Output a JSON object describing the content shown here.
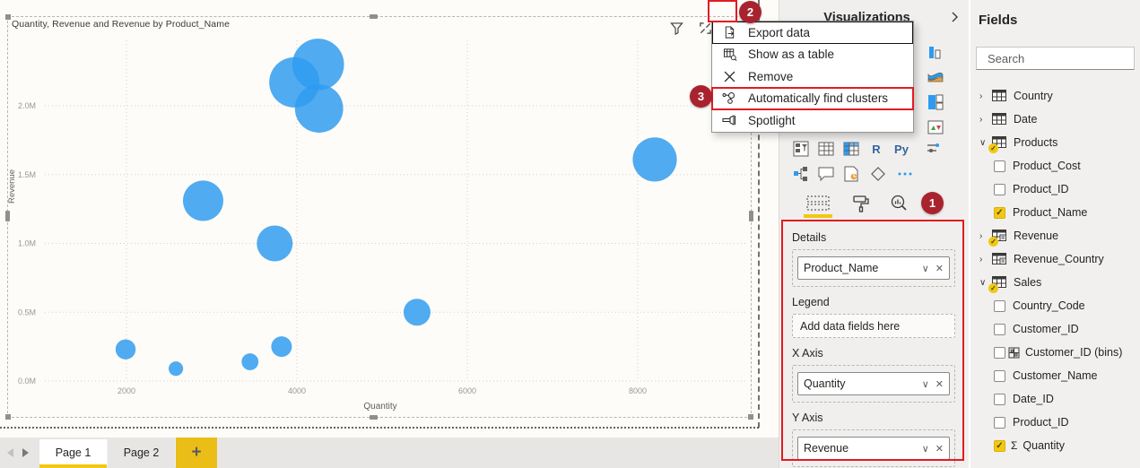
{
  "app": {
    "accent_yellow": "#F2C811",
    "bubble_blue": "#2E9BF0",
    "annotation_box_red": "#E11B22",
    "annotation_circle_red": "#A8232E"
  },
  "visual": {
    "title": "Quantity, Revenue and Revenue by Product_Name",
    "toolbar_icons": [
      "filter",
      "focus-mode",
      "more-options"
    ],
    "chart_data": {
      "type": "scatter",
      "title": "Quantity, Revenue and Revenue by Product_Name",
      "xlabel": "Quantity",
      "ylabel": "Revenue",
      "x_ticks": [
        2000,
        4000,
        6000,
        8000
      ],
      "y_tick_labels": [
        "0.0M",
        "0.5M",
        "1.0M",
        "1.5M",
        "2.0M"
      ],
      "xlim": [
        1050,
        9300
      ],
      "ylim": [
        0,
        2500000
      ],
      "grid": true,
      "legend": "none",
      "size_encoding": "Revenue",
      "series": [
        {
          "name": "Product_Name",
          "points": [
            {
              "quantity": 4250,
              "revenue": 2300000
            },
            {
              "quantity": 3970,
              "revenue": 2170000
            },
            {
              "quantity": 4260,
              "revenue": 1980000
            },
            {
              "quantity": 2900,
              "revenue": 1310000
            },
            {
              "quantity": 3740,
              "revenue": 1000000
            },
            {
              "quantity": 8200,
              "revenue": 1610000
            },
            {
              "quantity": 5410,
              "revenue": 500000
            },
            {
              "quantity": 1990,
              "revenue": 230000
            },
            {
              "quantity": 2580,
              "revenue": 90000
            },
            {
              "quantity": 3450,
              "revenue": 140000
            },
            {
              "quantity": 3820,
              "revenue": 250000
            }
          ]
        }
      ]
    }
  },
  "context_menu": {
    "items": [
      {
        "label": "Export data",
        "icon": "export-data",
        "focused": true
      },
      {
        "label": "Show as a table",
        "icon": "show-as-table"
      },
      {
        "label": "Remove",
        "icon": "remove"
      },
      {
        "label": "Automatically find clusters",
        "icon": "find-clusters",
        "annotated": true
      },
      {
        "label": "Spotlight",
        "icon": "spotlight"
      }
    ]
  },
  "annotations": {
    "step1": "1",
    "step2": "2",
    "step3": "3"
  },
  "visualizations_pane": {
    "title": "Visualizations",
    "gallery_text": {
      "r": "R",
      "py": "Py"
    },
    "gallery_right_column": [
      "funnel-chart",
      "ribbon-chart",
      "treemap",
      "kpi"
    ],
    "gallery_row1": [
      "slicer",
      "table",
      "matrix",
      "r-script",
      "python",
      "fields-parameter"
    ],
    "gallery_row2": [
      "decomposition-tree",
      "qa",
      "paginated-report",
      "power-apps",
      "more-visuals"
    ],
    "tabs": [
      {
        "name": "fields",
        "active": true
      },
      {
        "name": "format",
        "active": false
      },
      {
        "name": "analytics",
        "active": false
      }
    ],
    "wells": [
      {
        "label": "Details",
        "value": "Product_Name",
        "empty": false
      },
      {
        "label": "Legend",
        "placeholder": "Add data fields here",
        "empty": true
      },
      {
        "label": "X Axis",
        "value": "Quantity",
        "empty": false
      },
      {
        "label": "Y Axis",
        "value": "Revenue",
        "empty": false
      }
    ]
  },
  "fields_pane": {
    "title": "Fields",
    "search_placeholder": "Search",
    "tree": [
      {
        "kind": "table",
        "name": "Country",
        "expanded": false,
        "icon": "table",
        "badge": false
      },
      {
        "kind": "table",
        "name": "Date",
        "expanded": false,
        "icon": "table",
        "badge": false
      },
      {
        "kind": "table",
        "name": "Products",
        "expanded": true,
        "icon": "table",
        "badge": true
      },
      {
        "kind": "field",
        "name": "Product_Cost",
        "checked": false
      },
      {
        "kind": "field",
        "name": "Product_ID",
        "checked": false
      },
      {
        "kind": "field",
        "name": "Product_Name",
        "checked": true
      },
      {
        "kind": "table",
        "name": "Revenue",
        "expanded": false,
        "icon": "calc-table",
        "badge": true
      },
      {
        "kind": "table",
        "name": "Revenue_Country",
        "expanded": false,
        "icon": "calc-table",
        "badge": false
      },
      {
        "kind": "table",
        "name": "Sales",
        "expanded": true,
        "icon": "table",
        "badge": true
      },
      {
        "kind": "field",
        "name": "Country_Code",
        "checked": false
      },
      {
        "kind": "field",
        "name": "Customer_ID",
        "checked": false
      },
      {
        "kind": "field",
        "name": "Customer_ID (bins)",
        "checked": false,
        "icon": "bins"
      },
      {
        "kind": "field",
        "name": "Customer_Name",
        "checked": false
      },
      {
        "kind": "field",
        "name": "Date_ID",
        "checked": false
      },
      {
        "kind": "field",
        "name": "Product_ID",
        "checked": false
      },
      {
        "kind": "field",
        "name": "Quantity",
        "checked": true,
        "icon": "sigma"
      }
    ]
  },
  "page_bar": {
    "tabs": [
      {
        "label": "Page 1",
        "active": true
      },
      {
        "label": "Page 2",
        "active": false
      }
    ],
    "add_button": "+"
  }
}
